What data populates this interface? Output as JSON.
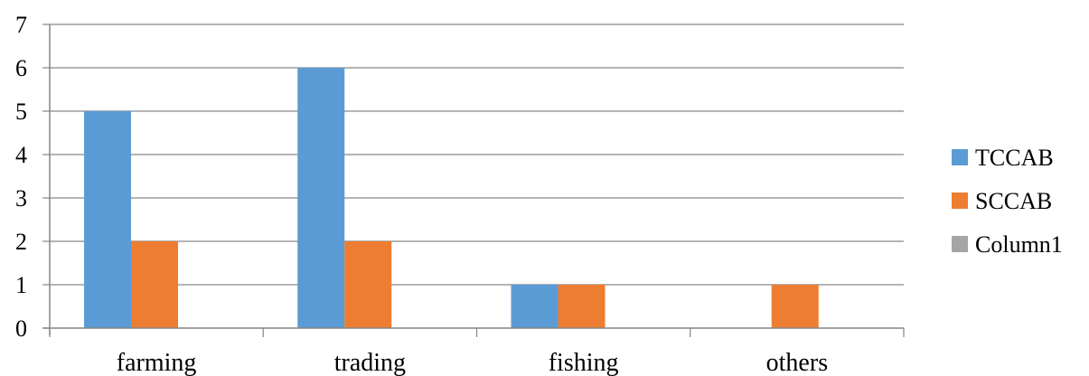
{
  "chart_data": {
    "type": "bar",
    "categories": [
      "farming",
      "trading",
      "fishing",
      "others"
    ],
    "series": [
      {
        "name": "TCCAB",
        "values": [
          5,
          6,
          1,
          0
        ],
        "color": "#5B9BD5"
      },
      {
        "name": "SCCAB",
        "values": [
          2,
          2,
          1,
          1
        ],
        "color": "#ED7D31"
      },
      {
        "name": "Column1",
        "values": [
          0,
          0,
          0,
          0
        ],
        "color": "#A5A5A5"
      }
    ],
    "y_ticks": [
      "0",
      "1",
      "2",
      "3",
      "4",
      "5",
      "6",
      "7"
    ],
    "ylim": [
      0,
      7
    ],
    "grid": true,
    "legend_position": "right"
  }
}
